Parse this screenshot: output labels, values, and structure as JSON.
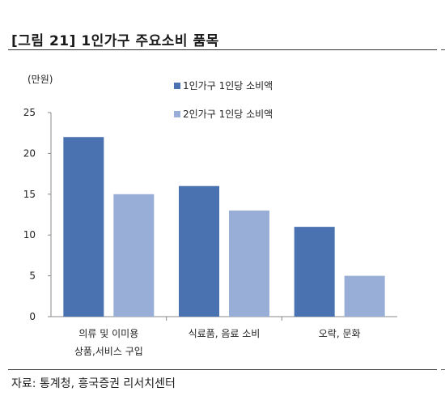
{
  "title": "[그림 21] 1인가구 주요소비 품목",
  "source": "자료: 통계청, 흥국증권 리서치센터",
  "chart_data": {
    "type": "bar",
    "unit_label": "(만원)",
    "categories": [
      [
        "의류 및 이미용",
        "상품,서비스 구입"
      ],
      [
        "식료품, 음료 소비"
      ],
      [
        "오락, 문화"
      ]
    ],
    "series": [
      {
        "name": "1인가구 1인당 소비액",
        "color": "#4a72b0",
        "values": [
          22,
          16,
          11
        ]
      },
      {
        "name": "2인가구 1인당 소비액",
        "color": "#98aed6",
        "values": [
          15,
          13,
          5
        ]
      }
    ],
    "ylim": [
      0,
      25
    ],
    "yticks": [
      0,
      5,
      10,
      15,
      20,
      25
    ],
    "grid": false,
    "legend_position": "top-right"
  }
}
